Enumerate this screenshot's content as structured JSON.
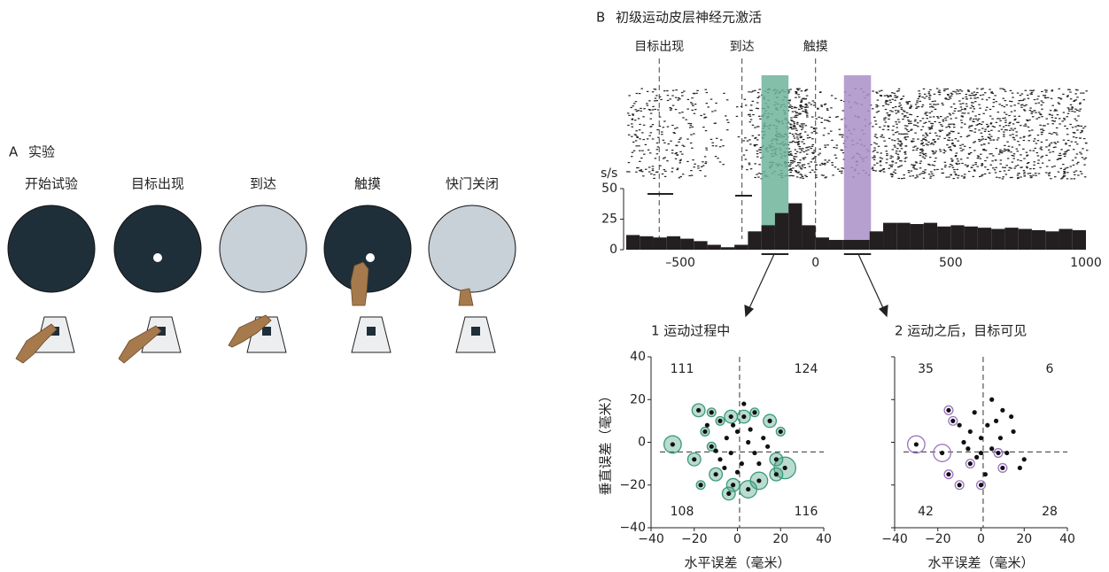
{
  "panel_a": {
    "letter": "A",
    "title": "实验",
    "steps": [
      "开始试验",
      "目标出现",
      "到达",
      "触摸",
      "快门关闭"
    ]
  },
  "panel_b": {
    "letter": "B",
    "title": "初级运动皮层神经元激活"
  },
  "chart_data": [
    {
      "type": "histogram",
      "ylabel": "s/s",
      "events": [
        {
          "label": "目标出现",
          "time": -578
        },
        {
          "label": "到达",
          "time": -272
        },
        {
          "label": "触摸",
          "time": 0
        }
      ],
      "windows": [
        {
          "start": -200,
          "end": -100,
          "color": "#6fb49a"
        },
        {
          "start": 105,
          "end": 205,
          "color": "#a98fc8"
        }
      ],
      "bins": [
        -700,
        -650,
        -600,
        -550,
        -500,
        -450,
        -400,
        -350,
        -300,
        -250,
        -200,
        -150,
        -100,
        -50,
        0,
        50,
        100,
        150,
        200,
        250,
        300,
        350,
        400,
        450,
        500,
        550,
        600,
        650,
        700,
        750,
        800,
        850,
        900,
        950,
        1000
      ],
      "values": [
        12,
        11,
        10,
        11,
        9,
        7,
        4,
        2,
        4,
        15,
        20,
        30,
        38,
        20,
        10,
        8,
        8,
        8,
        15,
        22,
        22,
        21,
        22,
        19,
        20,
        19,
        18,
        17,
        18,
        17,
        16,
        15,
        17,
        16
      ],
      "color": "#231f20",
      "xlim": [
        -700,
        1000
      ],
      "ylim": [
        0,
        50
      ],
      "xticks": [
        {
          "value": -500,
          "label": "–500"
        },
        0,
        500,
        1000
      ],
      "yticks": [
        0,
        25,
        50
      ]
    },
    {
      "type": "scatter",
      "title": "1  运动过程中",
      "ylabel": "垂直误差（毫米）",
      "xlabel": "水平误差（毫米）",
      "ring_color": "#3a9a78",
      "crosshair": [
        1,
        -4.5
      ],
      "quadrant_counts": [
        111,
        124,
        108,
        116
      ],
      "x": [
        -30,
        -18,
        -12,
        -15,
        -8,
        -3,
        3,
        8,
        15,
        20,
        22,
        18,
        10,
        5,
        -2,
        -10,
        -17,
        -20,
        -12,
        -5,
        0,
        5,
        -3,
        8,
        2,
        -8,
        12,
        -2,
        6,
        -6,
        14,
        0,
        10,
        -14,
        3,
        -10,
        18,
        -4
      ],
      "y": [
        -1,
        15,
        14,
        5,
        10,
        12,
        12,
        14,
        10,
        5,
        -12,
        -8,
        -18,
        -22,
        -20,
        -15,
        -20,
        -8,
        -2,
        2,
        5,
        0,
        -5,
        -5,
        -10,
        -8,
        2,
        8,
        6,
        -12,
        -2,
        -14,
        -10,
        8,
        18,
        -4,
        -15,
        -24
      ],
      "sizes": [
        4,
        3,
        2,
        2,
        2,
        3,
        3,
        2,
        3,
        2,
        5,
        3,
        4,
        4,
        3,
        3,
        2,
        3,
        2,
        0,
        0,
        0,
        0,
        0,
        0,
        0,
        0,
        0,
        0,
        0,
        0,
        0,
        0,
        0,
        0,
        0,
        3,
        3
      ],
      "xlim": [
        -40,
        40
      ],
      "ylim": [
        -40,
        40
      ],
      "xticks": [
        {
          "value": -40,
          "label": "−40"
        },
        {
          "value": -20,
          "label": "−20"
        },
        0,
        20,
        40
      ],
      "yticks": [
        40,
        20,
        0,
        {
          "value": -20,
          "label": "−20"
        },
        {
          "value": -40,
          "label": "−40"
        }
      ]
    },
    {
      "type": "scatter",
      "title": "2  运动之后，目标可见",
      "xlabel": "水平误差（毫米）",
      "ring_color": "#9b72c0",
      "crosshair": [
        1,
        -4.5
      ],
      "quadrant_counts": [
        35,
        6,
        42,
        28
      ],
      "x": [
        -30,
        -15,
        -13,
        -18,
        -15,
        -10,
        0,
        10,
        8,
        -5,
        18,
        15,
        10,
        5,
        -5,
        0,
        3,
        -8,
        5,
        12,
        -2,
        7,
        -10,
        20,
        2,
        -3,
        14,
        0,
        -6,
        9
      ],
      "y": [
        -1,
        15,
        10,
        -5,
        -15,
        -20,
        -20,
        -12,
        -5,
        -10,
        -12,
        5,
        15,
        20,
        5,
        2,
        8,
        0,
        -3,
        -5,
        -7,
        10,
        8,
        -8,
        -15,
        14,
        12,
        -5,
        -3,
        2
      ],
      "sizes": [
        4,
        2,
        2,
        4,
        2,
        2,
        2,
        2,
        2,
        2,
        0,
        0,
        0,
        0,
        0,
        0,
        0,
        0,
        0,
        0,
        0,
        0,
        0,
        0,
        0,
        0,
        0,
        0,
        0,
        0
      ],
      "xlim": [
        -40,
        40
      ],
      "ylim": [
        -40,
        40
      ],
      "xticks": [
        {
          "value": -40,
          "label": "−40"
        },
        {
          "value": -20,
          "label": "−20"
        },
        0,
        20,
        40
      ]
    }
  ]
}
